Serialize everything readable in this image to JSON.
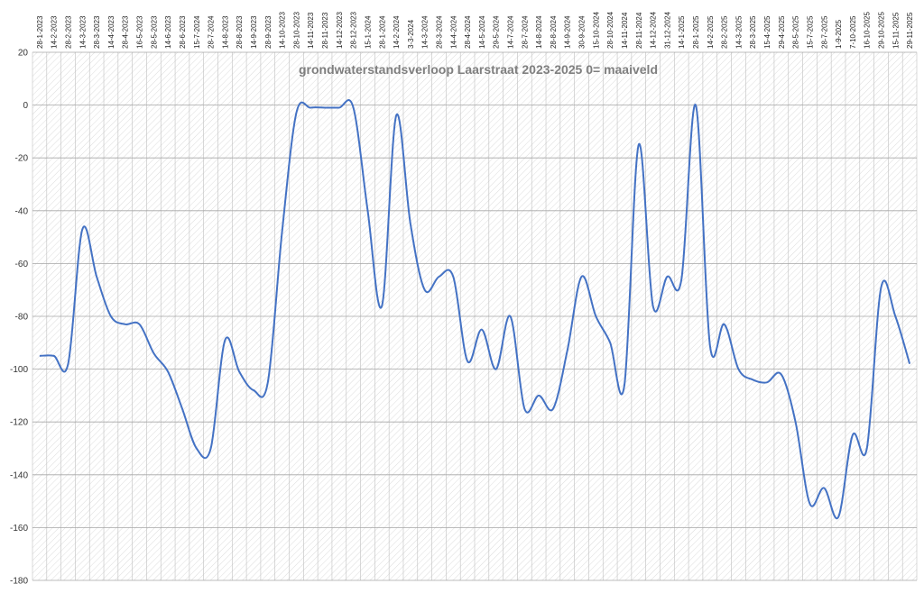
{
  "chart_data": {
    "type": "line",
    "title": "grondwaterstandsverloop Laarstraat 2023-2025  0= maaiveld",
    "xlabel": "",
    "ylabel": "",
    "ylim": [
      -180,
      20
    ],
    "ytick_step": 20,
    "grid": true,
    "legend": "none",
    "x": [
      "28-1-2023",
      "14-2-2023",
      "28-2-2023",
      "14-3-2023",
      "28-3-2023",
      "14-4-2023",
      "28-4-2023",
      "16-5-2023",
      "28-5-2023",
      "14-6-2023",
      "28-6-2023",
      "15-7-2024",
      "28-7-2024",
      "14-8-2023",
      "28-8-2023",
      "14-9-2023",
      "28-9-2023",
      "14-10-2023",
      "28-10-2023",
      "14-11-2023",
      "28-11-2023",
      "14-12-2023",
      "28-12-2023",
      "15-1-2024",
      "28-1-2024",
      "14-2-2024",
      "3-3-2024",
      "14-3-2024",
      "28-3-2024",
      "14-4-2024",
      "28-4-2024",
      "14-5-2024",
      "29-5-2024",
      "14-7-2024",
      "28-7-2024",
      "14-8-2024",
      "28-8-2024",
      "14-9-2024",
      "30-9-2024",
      "15-10-2024",
      "28-10-2024",
      "14-11-2024",
      "28-11-2024",
      "14-12-2024",
      "31-12-2024",
      "14-1-2025",
      "28-1-2025",
      "14-2-2025",
      "28-2-2025",
      "14-3-2025",
      "28-3-2025",
      "15-4-2025",
      "29-4-2025",
      "28-5-2025",
      "15-7-2025",
      "28-7-2025",
      "1-9-2025",
      "7-10-2025",
      "16-10-2025",
      "29-10-2025",
      "15-11-2025",
      "29-11-2025"
    ],
    "series": [
      {
        "values": [
          -95,
          -95,
          -98,
          -47,
          -65,
          -80,
          -83,
          -83,
          -94,
          -101,
          -115,
          -130,
          -130,
          -89,
          -101,
          -108,
          -105,
          -48,
          -3,
          -1,
          -1,
          -1,
          -1,
          -40,
          -76,
          -4,
          -45,
          -70,
          -65,
          -65,
          -97,
          -85,
          -100,
          -80,
          -115,
          -110,
          -115,
          -93,
          -65,
          -80,
          -90,
          -106,
          -15,
          -76,
          -65,
          -66,
          0,
          -91,
          -83,
          -100,
          -104,
          -105,
          -102,
          -120,
          -151,
          -145,
          -156,
          -125,
          -130,
          -69,
          -80,
          -98
        ]
      }
    ],
    "colors": {
      "line": "#4472c4",
      "grid": "#bfbfbf",
      "hatch": "#d4d4d4"
    }
  }
}
